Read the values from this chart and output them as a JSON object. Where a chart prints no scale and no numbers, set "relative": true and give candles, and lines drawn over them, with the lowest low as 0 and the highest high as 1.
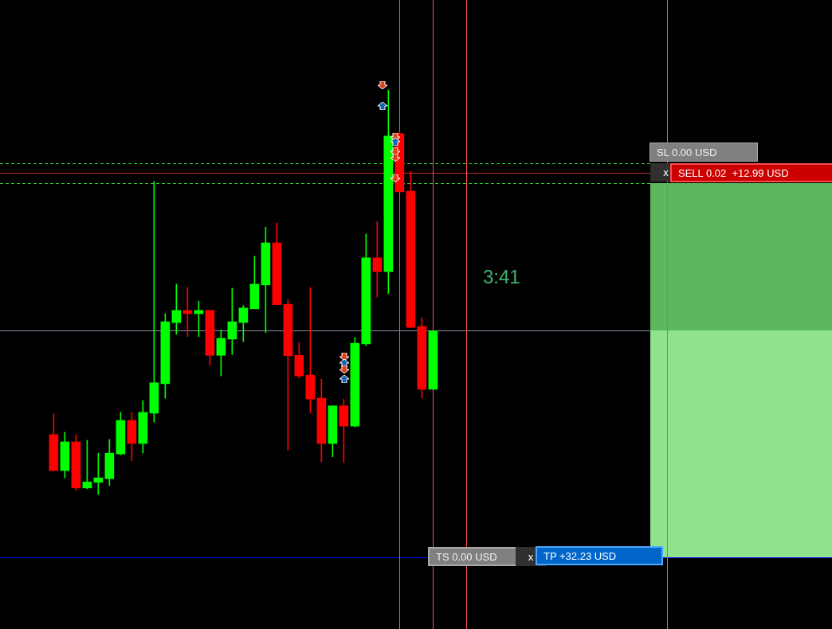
{
  "chart_data": {
    "type": "candlestick",
    "relative": true,
    "categories": [
      null,
      null,
      null,
      null,
      null,
      null,
      null,
      null,
      null,
      null,
      null,
      null,
      null,
      null,
      null,
      null,
      null,
      null,
      null,
      null,
      null,
      null,
      null,
      null,
      null,
      null,
      null,
      null,
      null,
      null,
      null,
      null,
      null,
      null,
      null
    ],
    "ohlc": [
      [
        0.148,
        0.199,
        0.059,
        0.059
      ],
      [
        0.059,
        0.154,
        0.041,
        0.13
      ],
      [
        0.13,
        0.148,
        0.01,
        0.016
      ],
      [
        0.016,
        0.134,
        0.014,
        0.031
      ],
      [
        0.03,
        0.102,
        0,
        0.041
      ],
      [
        0.039,
        0.136,
        0.022,
        0.102
      ],
      [
        0.1,
        0.203,
        0.098,
        0.183
      ],
      [
        0.183,
        0.203,
        0.083,
        0.126
      ],
      [
        0.126,
        0.232,
        0.102,
        0.203
      ],
      [
        0.201,
        0.774,
        0.179,
        0.276
      ],
      [
        0.274,
        0.447,
        0.238,
        0.427
      ],
      [
        0.425,
        0.52,
        0.396,
        0.455
      ],
      [
        0.455,
        0.512,
        0.39,
        0.447
      ],
      [
        0.447,
        0.478,
        0.39,
        0.455
      ],
      [
        0.455,
        0.455,
        0.319,
        0.344
      ],
      [
        0.344,
        0.407,
        0.293,
        0.386
      ],
      [
        0.384,
        0.51,
        0.346,
        0.427
      ],
      [
        0.425,
        0.467,
        0.378,
        0.461
      ],
      [
        0.459,
        0.589,
        0.459,
        0.52
      ],
      [
        0.518,
        0.661,
        0.4,
        0.622
      ],
      [
        0.622,
        0.671,
        0.469,
        0.469
      ],
      [
        0.47,
        0.482,
        0.11,
        0.343
      ],
      [
        0.344,
        0.376,
        0.287,
        0.293
      ],
      [
        0.295,
        0.512,
        0.201,
        0.236
      ],
      [
        0.238,
        0.285,
        0.081,
        0.126
      ],
      [
        0.126,
        0.219,
        0.093,
        0.219
      ],
      [
        0.219,
        0.236,
        0.079,
        0.169
      ],
      [
        0.169,
        0.388,
        0.167,
        0.374
      ],
      [
        0.372,
        0.644,
        0.368,
        0.585
      ],
      [
        0.585,
        0.675,
        0.488,
        0.551
      ],
      [
        0.551,
        1,
        0.496,
        0.886
      ],
      [
        0.892,
        0.898,
        0.748,
        0.748
      ],
      [
        0.75,
        0.799,
        0.413,
        0.413
      ],
      [
        0.415,
        0.437,
        0.238,
        0.26
      ],
      [
        0.26,
        0.404,
        0.26,
        0.404
      ]
    ],
    "colors": [
      "#ff0000",
      "#00ff00",
      "#ff0000",
      "#00ff00",
      "#00ff00",
      "#00ff00",
      "#00ff00",
      "#ff0000",
      "#00ff00",
      "#00ff00",
      "#00ff00",
      "#00ff00",
      "#ff0000",
      "#00ff00",
      "#ff0000",
      "#00ff00",
      "#00ff00",
      "#00ff00",
      "#00ff00",
      "#00ff00",
      "#ff0000",
      "#ff0000",
      "#ff0000",
      "#ff0000",
      "#ff0000",
      "#00ff00",
      "#ff0000",
      "#00ff00",
      "#00ff00",
      "#ff0000",
      "#00ff00",
      "#ff0000",
      "#ff0000",
      "#ff0000",
      "#00ff00"
    ],
    "ref_lines": [
      {
        "axis": "y",
        "value": 0.819,
        "color": "#33cc33",
        "line_style": "dashed"
      },
      {
        "axis": "y",
        "value": 0.795,
        "color": "#cc3333"
      },
      {
        "axis": "y",
        "value": 0.77,
        "color": "#33cc33",
        "line_style": "dashed"
      },
      {
        "axis": "y",
        "value": 0.406,
        "color": "#8a8fa8"
      },
      {
        "axis": "y",
        "value": -0.156,
        "color": "#0000ff"
      }
    ],
    "annotations": [
      "SL 0.00 USD",
      "x",
      "SELL 0.02  +12.99 USD",
      "3:41",
      "TS 0.00 USD",
      "x",
      "TP +32.23 USD"
    ]
  }
}
